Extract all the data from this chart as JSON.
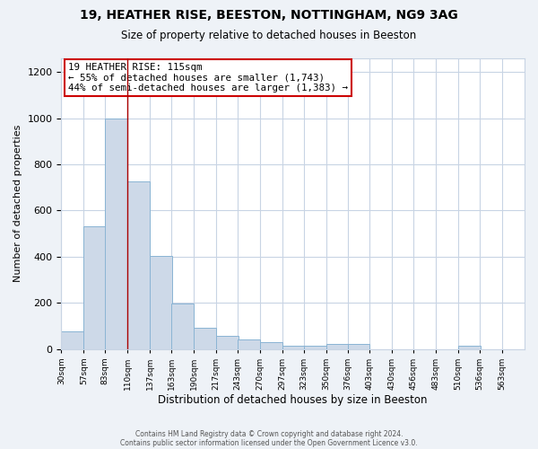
{
  "title": "19, HEATHER RISE, BEESTON, NOTTINGHAM, NG9 3AG",
  "subtitle": "Size of property relative to detached houses in Beeston",
  "xlabel": "Distribution of detached houses by size in Beeston",
  "ylabel": "Number of detached properties",
  "bins": [
    30,
    57,
    83,
    110,
    137,
    163,
    190,
    217,
    243,
    270,
    297,
    323,
    350,
    376,
    403,
    430,
    456,
    483,
    510,
    536,
    563
  ],
  "counts": [
    75,
    530,
    1000,
    725,
    405,
    198,
    90,
    57,
    40,
    28,
    15,
    15,
    20,
    20,
    0,
    0,
    0,
    0,
    12,
    0,
    0
  ],
  "bar_color": "#cdd9e8",
  "bar_edge_color": "#8ab4d4",
  "property_line_x": 110,
  "property_line_color": "#aa0000",
  "annotation_text": "19 HEATHER RISE: 115sqm\n← 55% of detached houses are smaller (1,743)\n44% of semi-detached houses are larger (1,383) →",
  "annotation_box_color": "white",
  "annotation_box_edge_color": "#cc0000",
  "ylim": [
    0,
    1260
  ],
  "yticks": [
    0,
    200,
    400,
    600,
    800,
    1000,
    1200
  ],
  "tick_labels": [
    "30sqm",
    "57sqm",
    "83sqm",
    "110sqm",
    "137sqm",
    "163sqm",
    "190sqm",
    "217sqm",
    "243sqm",
    "270sqm",
    "297sqm",
    "323sqm",
    "350sqm",
    "376sqm",
    "403sqm",
    "430sqm",
    "456sqm",
    "483sqm",
    "510sqm",
    "536sqm",
    "563sqm"
  ],
  "footer1": "Contains HM Land Registry data © Crown copyright and database right 2024.",
  "footer2": "Contains public sector information licensed under the Open Government Licence v3.0.",
  "background_color": "#eef2f7",
  "plot_bg_color": "#ffffff",
  "grid_color": "#c8d4e4"
}
